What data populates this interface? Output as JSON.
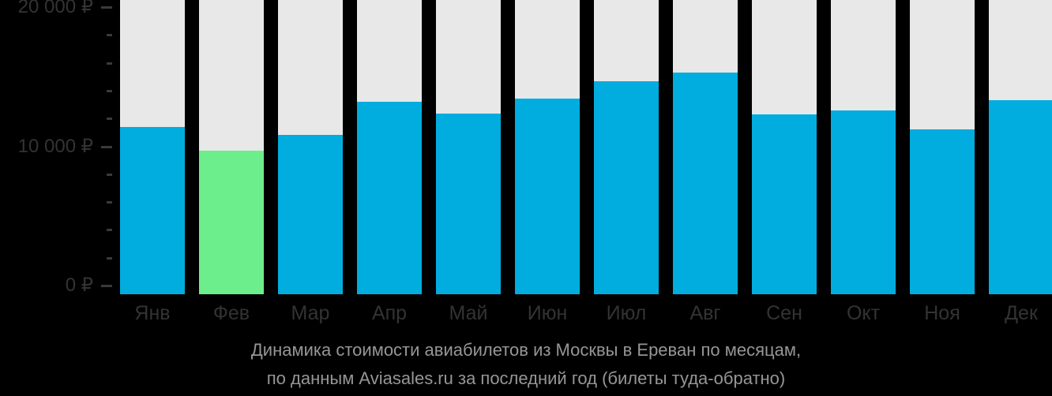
{
  "page": {
    "background_color": "#000000"
  },
  "chart_data": {
    "type": "bar",
    "title": "Динамика стоимости авиабилетов из Москвы в Ереван по месяцам,",
    "subtitle": "по данным Aviasales.ru за последний год (билеты туда-обратно)",
    "source_label": "Aviasales.ru",
    "categories": [
      "Янв",
      "Фев",
      "Мар",
      "Апр",
      "Май",
      "Июн",
      "Июл",
      "Авг",
      "Сен",
      "Окт",
      "Ноя",
      "Дек"
    ],
    "values": [
      11350,
      9750,
      10850,
      13100,
      12300,
      13300,
      14500,
      15050,
      12250,
      12500,
      11200,
      13200
    ],
    "highlight_index": 1,
    "ylim": [
      0,
      20000
    ],
    "y_ticks": [
      {
        "value": 20000,
        "label": "20 000 ₽"
      },
      {
        "value": 10000,
        "label": "10 000 ₽"
      },
      {
        "value": 0,
        "label": "0 ₽"
      }
    ],
    "minor_tick_step": 2000,
    "grid": "off",
    "legend_position": "none",
    "currency": "₽",
    "colors": {
      "bar": "#00ADDE",
      "bar_highlight": "#6DEE8C",
      "column_background": "#E8E8E8",
      "axis_text": "#333333",
      "tick": "#3A3A3A",
      "caption_text": "#969696",
      "page_background": "#000000"
    }
  }
}
